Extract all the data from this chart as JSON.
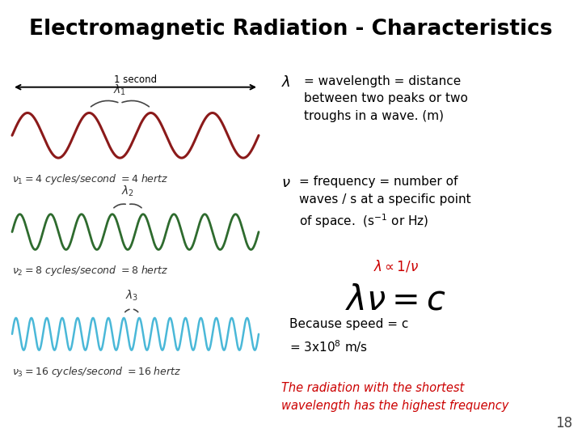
{
  "title": "Electromagnetic Radiation - Characteristics",
  "title_bg": "#d8eeaa",
  "title_border": "#b8cc88",
  "title_color": "#000000",
  "title_fontsize": 19,
  "bg_color": "#ffffff",
  "wave1_color": "#8b1a1a",
  "wave2_color": "#2e6b2e",
  "wave3_color": "#4ab8d8",
  "wave1_freq": 4,
  "wave2_freq": 8,
  "wave3_freq": 16,
  "wave1_label": "$\\nu_1 = 4$ cycles/second $= 4$ hertz",
  "wave2_label": "$\\nu_2 = 8$ cycles/second $= 8$ hertz",
  "wave3_label": "$\\nu_3 = 16$ cycles/second $= 16$ hertz",
  "lambda1_label": "$\\lambda_1$",
  "lambda2_label": "$\\lambda_2$",
  "lambda3_label": "$\\lambda_3$",
  "one_second_label": "1 second",
  "text_lambda_sym": "$\\lambda$",
  "text_lambda_def": "= wavelength = distance\nbetween two peaks or two\ntroughs in a wave. (m)",
  "text_nu_sym": "$\\nu$",
  "text_nu_def": "= frequency = number of\nwaves / s at a specific point\nof space.  (s$^{-1}$ or Hz)",
  "text_proportional": "$\\lambda \\propto 1/\\nu$",
  "text_equation": "$\\lambda\\nu = c$",
  "text_because": "Because speed = c\n= 3x10$^{8}$ m/s",
  "text_radiation": "The radiation with the shortest\nwavelength has the highest frequency",
  "page_number": "18",
  "red_text_color": "#cc0000",
  "dark_text_color": "#333333"
}
